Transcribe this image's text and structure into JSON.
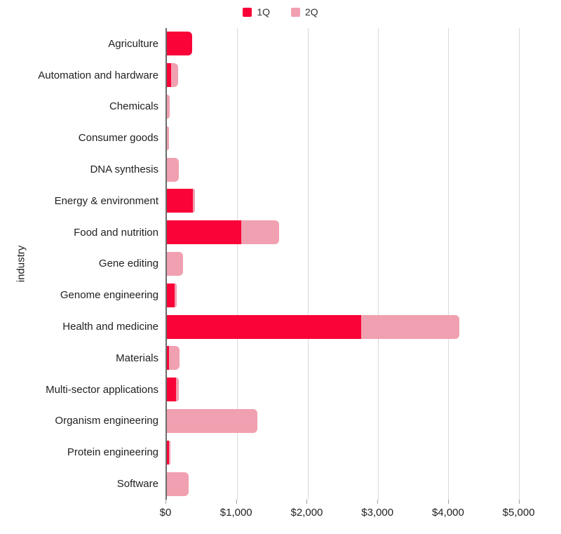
{
  "legend": {
    "items": [
      {
        "label": "1Q",
        "color": "#F90338"
      },
      {
        "label": "2Q",
        "color": "#F0A0B0"
      }
    ]
  },
  "colors": {
    "series_1q": "#F90338",
    "series_2q": "#F0A0B0",
    "gridline": "#d9d9d9",
    "axis_line": "#6b6b6b",
    "text": "#212121"
  },
  "chart_data": {
    "type": "bar",
    "orientation": "horizontal",
    "stacked": true,
    "title": "",
    "xlabel": "",
    "ylabel": "industry",
    "legend_position": "top",
    "grid": true,
    "categories": [
      "Agriculture",
      "Automation and hardware",
      "Chemicals",
      "Consumer goods",
      "DNA synthesis",
      "Energy & environment",
      "Food and nutrition",
      "Gene editing",
      "Genome engineering",
      "Health and medicine",
      "Materials",
      "Multi-sector applications",
      "Organism engineering",
      "Protein engineering",
      "Software"
    ],
    "series": [
      {
        "name": "1Q",
        "color": "#F90338",
        "values": [
          360,
          60,
          0,
          0,
          0,
          370,
          1060,
          0,
          110,
          2760,
          30,
          130,
          0,
          30,
          0
        ]
      },
      {
        "name": "2Q",
        "color": "#F0A0B0",
        "values": [
          0,
          100,
          40,
          30,
          170,
          30,
          530,
          230,
          25,
          1390,
          150,
          40,
          1290,
          20,
          310
        ]
      }
    ],
    "x_ticks": [
      {
        "label": "$0",
        "value": 0
      },
      {
        "label": "$1,000",
        "value": 1000
      },
      {
        "label": "$2,000",
        "value": 2000
      },
      {
        "label": "$3,000",
        "value": 3000
      },
      {
        "label": "$4,000",
        "value": 4000
      },
      {
        "label": "$5,000",
        "value": 5000
      }
    ],
    "xlim": [
      0,
      5500
    ]
  }
}
